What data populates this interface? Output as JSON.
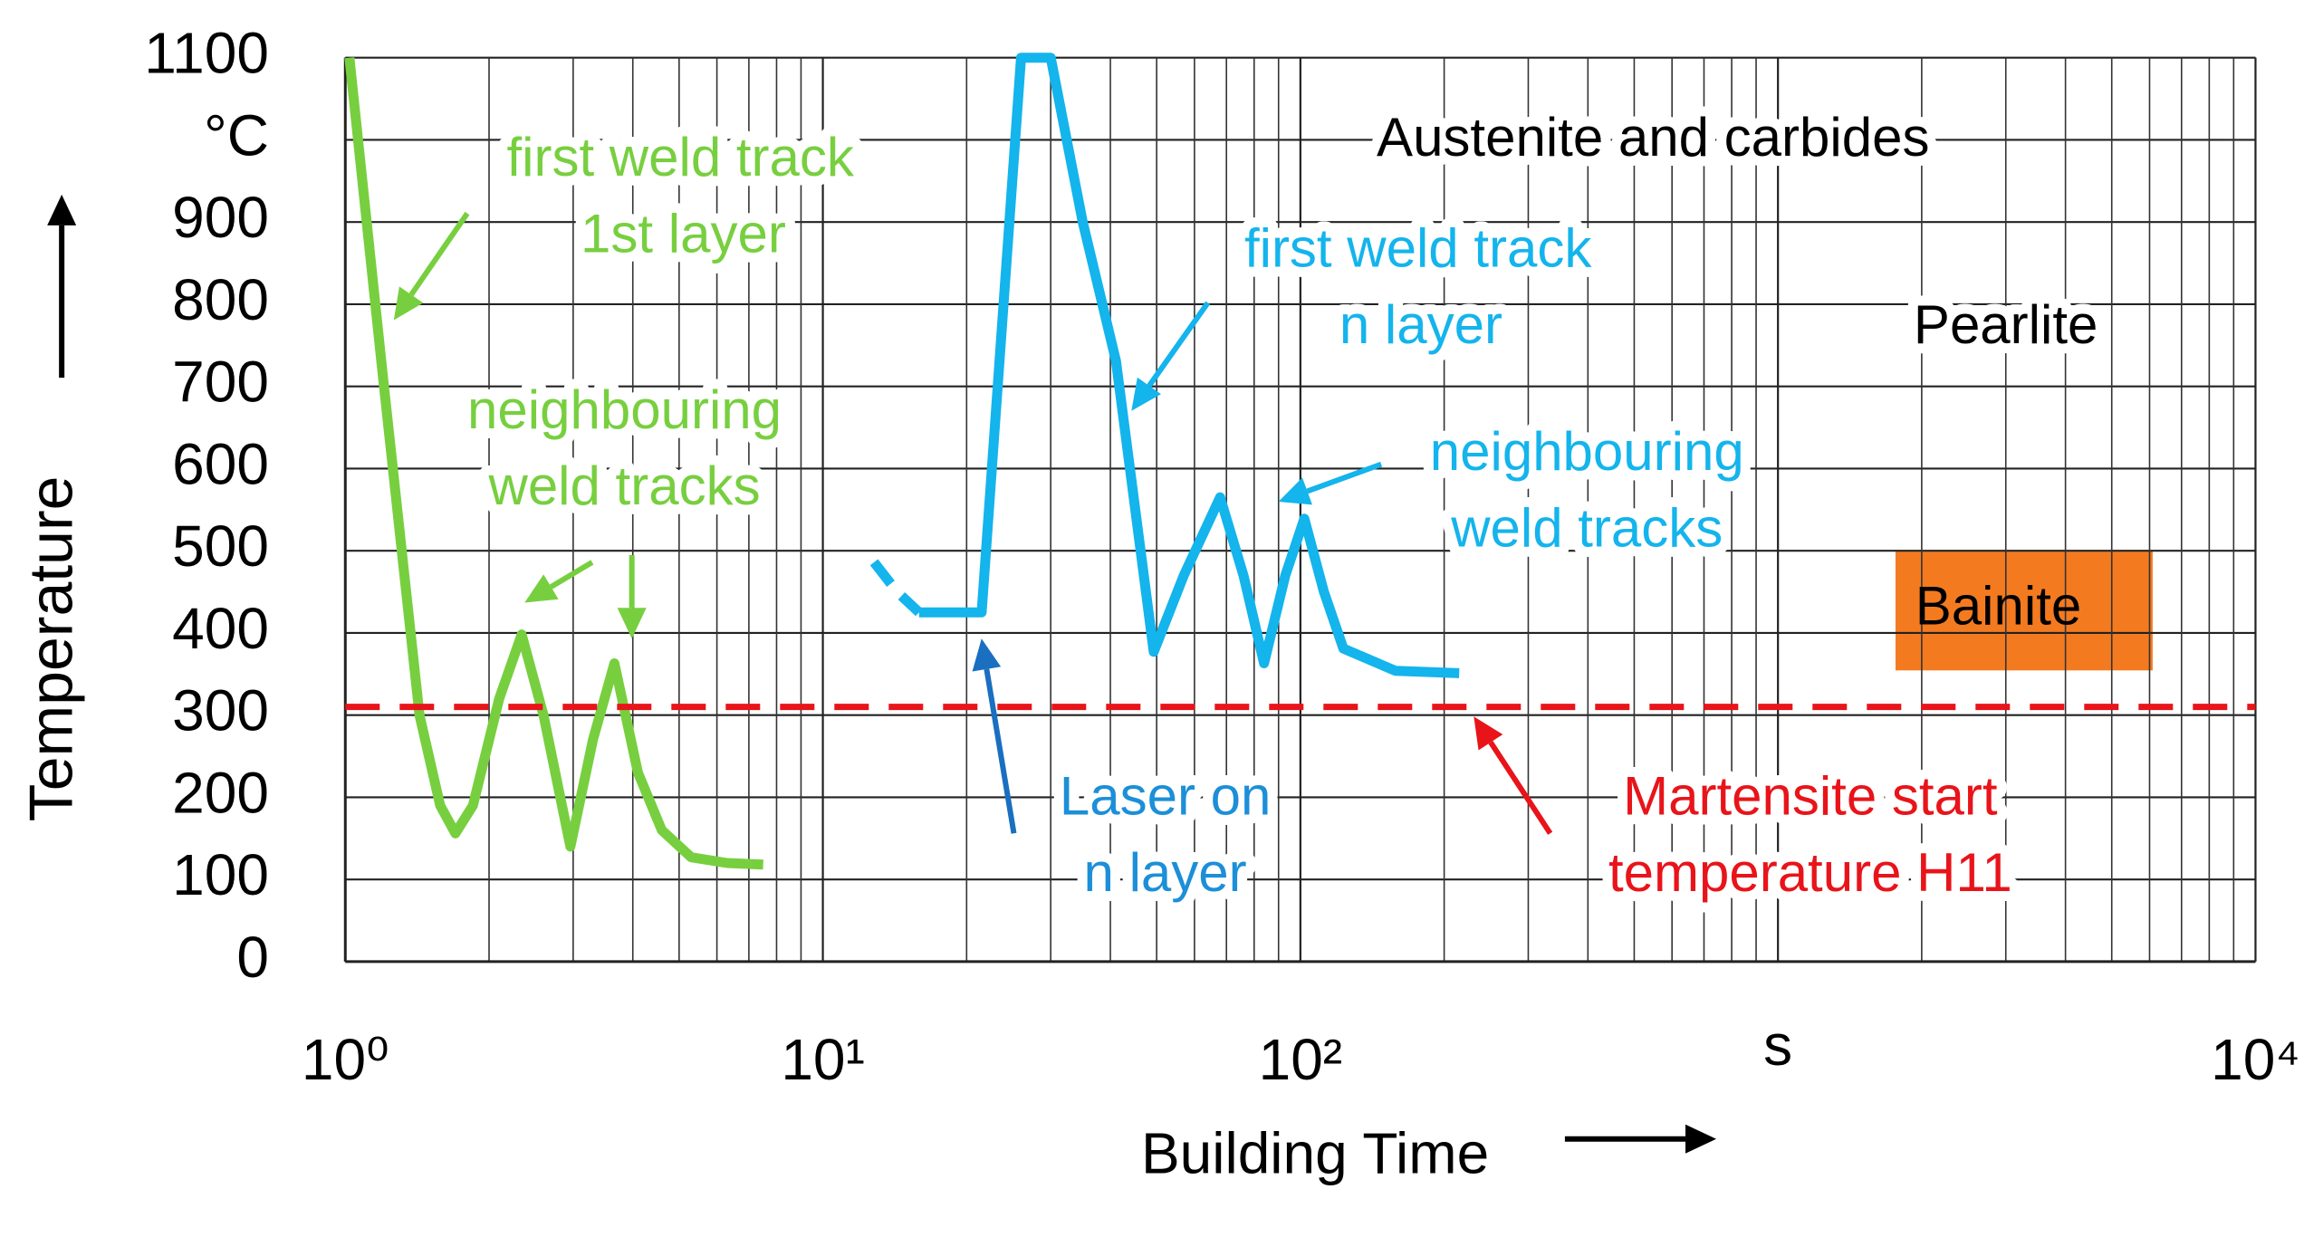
{
  "chart_data": {
    "type": "line",
    "y_label": "Temperature",
    "x_label": "Building Time",
    "log_x": true,
    "grid": true,
    "minor_grid": [
      2,
      3,
      4,
      5,
      6,
      7,
      8,
      9
    ],
    "xlim": [
      1,
      10000
    ],
    "xticks": [
      {
        "value": 1,
        "label": "10⁰"
      },
      {
        "value": 10,
        "label": "10¹"
      },
      {
        "value": 100,
        "label": "10²"
      },
      {
        "value": 1000,
        "label": "s"
      },
      {
        "value": 10000,
        "label": "10⁴"
      }
    ],
    "ylim": [
      0,
      1100
    ],
    "yticks": [
      0,
      100,
      200,
      300,
      400,
      500,
      600,
      700,
      800,
      900,
      {
        "value": 1000,
        "label": "°C"
      },
      1100
    ],
    "series": [
      {
        "color": "#77cf3f",
        "dashed": false,
        "x": [
          1.02,
          1.2,
          1.43,
          1.58,
          1.7,
          1.85,
          2.1,
          2.34,
          2.6,
          2.96,
          3.3,
          3.66,
          4.1,
          4.6,
          5.3,
          6.3,
          7.5
        ],
        "values": [
          1100,
          710,
          300,
          190,
          156,
          190,
          320,
          398,
          300,
          140,
          270,
          363,
          230,
          160,
          127,
          120,
          118
        ]
      },
      {
        "color": "#14b4ec",
        "dashed": true,
        "x": [
          12.8,
          14.3,
          15.9
        ],
        "values": [
          486,
          450,
          425
        ]
      },
      {
        "color": "#14b4ec",
        "dashed": false,
        "x": [
          15.9,
          21.5,
          26.0,
          30.0,
          35.0,
          41.1,
          49.3,
          57,
          67.9,
          76,
          83.9,
          93,
          101.9,
          112,
          123,
          158,
          215
        ],
        "values": [
          425,
          425,
          1100,
          1100,
          900,
          731,
          377,
          470,
          565,
          470,
          363,
          470,
          539,
          450,
          381,
          354,
          351
        ]
      },
      {
        "color": "#e8141a",
        "dashed": true,
        "x": [
          1,
          10000
        ],
        "values": [
          310,
          310
        ]
      }
    ],
    "annotations": [
      {
        "lines": [
          "first weld track",
          "1st layer"
        ],
        "color": "#77cf3f"
      },
      {
        "lines": [
          "neighbouring",
          "weld tracks"
        ],
        "color": "#77cf3f"
      },
      {
        "lines": [
          "first weld track",
          "n layer"
        ],
        "color": "#14b4ec"
      },
      {
        "lines": [
          "neighbouring",
          "weld tracks"
        ],
        "color": "#14b4ec"
      },
      {
        "lines": [
          "Laser on",
          "n layer"
        ],
        "color": "#1c8fd8"
      },
      {
        "lines": [
          "Martensite start",
          "temperature H11"
        ],
        "color": "#e8141a"
      },
      {
        "lines": [
          "Austenite and carbides"
        ],
        "color": "#000000"
      },
      {
        "lines": [
          "Pearlite"
        ],
        "color": "#000000"
      },
      {
        "lines": [
          "Bainite"
        ],
        "color": "#000000"
      }
    ]
  }
}
